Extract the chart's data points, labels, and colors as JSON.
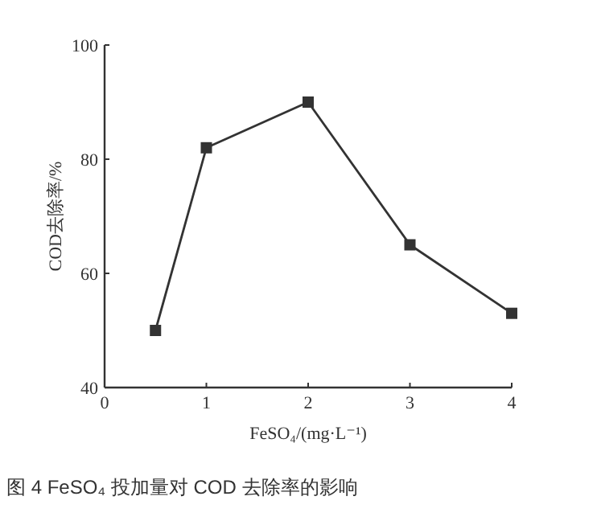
{
  "chart_data": {
    "type": "line",
    "title": "图 4 FeSO₄ 投加量对 COD 去除率的影响",
    "xlabel": "FeSO₄/(mg·L⁻¹)",
    "ylabel": "COD去除率/%",
    "x": [
      0.5,
      1,
      2,
      3,
      4
    ],
    "series": [
      {
        "color": "#333333",
        "values": [
          50,
          82,
          90,
          65,
          53
        ]
      }
    ],
    "xlim": [
      0,
      4
    ],
    "xticks": [
      0,
      1,
      2,
      3,
      4
    ],
    "ylim": [
      40,
      100
    ],
    "yticks": [
      40,
      60,
      80,
      100
    ],
    "marker": "square",
    "line_style": "solid",
    "grid": false
  }
}
